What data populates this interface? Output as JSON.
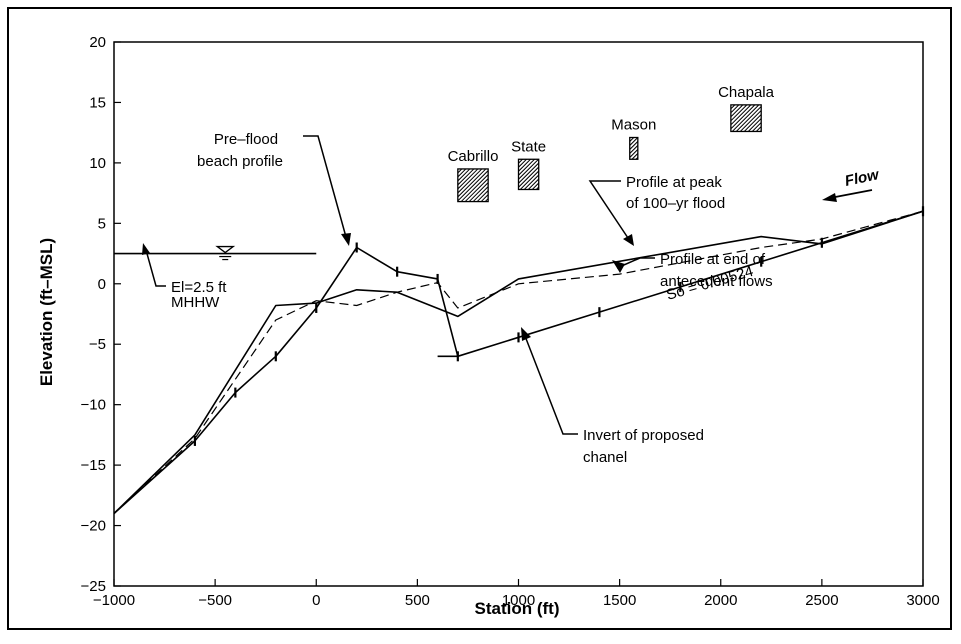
{
  "chart_data": {
    "type": "line",
    "xlabel": "Station (ft)",
    "ylabel": "Elevation (ft–MSL)",
    "xlim": [
      -1000,
      3000
    ],
    "ylim": [
      -25,
      20
    ],
    "x_ticks": [
      -1000,
      -500,
      0,
      500,
      1000,
      1500,
      2000,
      2500,
      3000
    ],
    "x_tick_labels": [
      "−1000",
      "−500",
      "0",
      "500",
      "1000",
      "1500",
      "2000",
      "2500",
      "3000"
    ],
    "y_ticks": [
      -25,
      -20,
      -15,
      -10,
      -5,
      0,
      5,
      10,
      15,
      20
    ],
    "y_tick_labels": [
      "−25",
      "−20",
      "−15",
      "−10",
      "−5",
      "0",
      "5",
      "10",
      "15",
      "20"
    ],
    "grid": false,
    "series": [
      {
        "key": "prefood",
        "style": "solid",
        "ticks": [
          -600,
          -400,
          -200,
          0,
          200,
          400,
          600
        ],
        "points": [
          [
            -1000,
            -19
          ],
          [
            -600,
            -13
          ],
          [
            -400,
            -9
          ],
          [
            -200,
            -6
          ],
          [
            0,
            -2
          ],
          [
            200,
            3
          ],
          [
            400,
            1
          ],
          [
            600,
            0.4
          ],
          [
            700,
            -6
          ]
        ]
      },
      {
        "key": "invert",
        "style": "solid",
        "ticks": [
          700,
          1000,
          1400,
          1800,
          2200,
          2500,
          3000
        ],
        "points": [
          [
            600,
            -6
          ],
          [
            700,
            -6
          ],
          [
            3000,
            6
          ]
        ]
      },
      {
        "key": "peak",
        "style": "solid",
        "ticks": [],
        "points": [
          [
            -1000,
            -19
          ],
          [
            -600,
            -12.5
          ],
          [
            -200,
            -1.8
          ],
          [
            0,
            -1.6
          ],
          [
            200,
            -0.5
          ],
          [
            400,
            -0.7
          ],
          [
            700,
            -2.7
          ],
          [
            1000,
            0.4
          ],
          [
            2200,
            3.9
          ],
          [
            2500,
            3.3
          ],
          [
            3000,
            6
          ]
        ]
      },
      {
        "key": "antecedent",
        "style": "dashed",
        "ticks": [],
        "points": [
          [
            -1000,
            -19
          ],
          [
            -600,
            -12.8
          ],
          [
            -200,
            -3
          ],
          [
            0,
            -1.4
          ],
          [
            200,
            -1.8
          ],
          [
            400,
            -0.7
          ],
          [
            600,
            0.1
          ],
          [
            700,
            -2
          ],
          [
            1000,
            0
          ],
          [
            1500,
            0.8
          ],
          [
            2200,
            3
          ],
          [
            2500,
            3.7
          ],
          [
            3000,
            6
          ]
        ]
      }
    ],
    "water_level": {
      "y": 2.5,
      "x_range": [
        -1000,
        0
      ],
      "symbol_x": -450
    },
    "bridges": [
      {
        "name": "Cabrillo",
        "x": [
          700,
          850
        ],
        "y": [
          6.8,
          9.5
        ]
      },
      {
        "name": "State",
        "x": [
          1000,
          1100
        ],
        "y": [
          7.8,
          10.3
        ]
      },
      {
        "name": "Mason",
        "x": [
          1550,
          1590
        ],
        "y": [
          10.3,
          12.1
        ]
      },
      {
        "name": "Chapala",
        "x": [
          2050,
          2200
        ],
        "y": [
          12.6,
          14.8
        ]
      }
    ],
    "annotations": [
      {
        "id": "prefood-label",
        "lines": [
          "Pre–flood",
          "beach profile"
        ]
      },
      {
        "id": "peak-label",
        "lines": [
          "Profile at peak",
          "of 100–yr flood"
        ]
      },
      {
        "id": "antecedent-label",
        "lines": [
          "Profile at end of",
          "antecedent flows"
        ]
      },
      {
        "id": "invert-label",
        "lines": [
          "Invert of proposed",
          "chanel"
        ]
      },
      {
        "id": "el-label",
        "lines": [
          "El=2.5 ft",
          "MHHW"
        ]
      },
      {
        "id": "slope-label",
        "lines": [
          "So = 0.00524"
        ]
      },
      {
        "id": "flow-label",
        "lines": [
          "Flow"
        ]
      }
    ]
  }
}
